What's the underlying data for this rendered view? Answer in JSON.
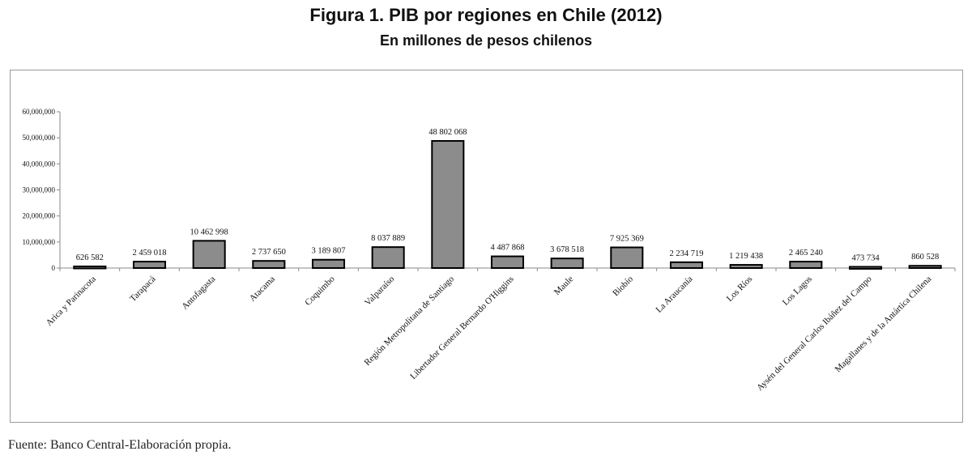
{
  "figure": {
    "title": "Figura 1. PIB por regiones en Chile (2012)",
    "subtitle": "En millones de pesos chilenos",
    "source": "Fuente: Banco Central-Elaboración propia."
  },
  "chart_data": {
    "type": "bar",
    "title": "Figura 1. PIB por regiones en Chile (2012)",
    "subtitle": "En millones de pesos chilenos",
    "xlabel": "",
    "ylabel": "",
    "ylim": [
      0,
      60000000
    ],
    "yticks": [
      0,
      10000000,
      20000000,
      30000000,
      40000000,
      50000000,
      60000000
    ],
    "ytick_labels": [
      "0",
      "10,000,000",
      "20,000,000",
      "30,000,000",
      "40,000,000",
      "50,000,000",
      "60,000,000"
    ],
    "grid": false,
    "legend": "none",
    "bar_color": "#8c8c8c",
    "bar_edge_color": "#000000",
    "categories": [
      "Arica y Parinacota",
      "Tarapacá",
      "Antofagasta",
      "Atacama",
      "Coquimbo",
      "Valparaíso",
      "Región Metropolitana de Santiago",
      "Libertador General Bernardo O'Higgins",
      "Maule",
      "Biobío",
      "La Araucanía",
      "Los Ríos",
      "Los Lagos",
      "Aysén del General Carlos Ibáñez del Campo",
      "Magallanes y de la Antártica Chilena"
    ],
    "values": [
      626582,
      2459018,
      10462998,
      2737650,
      3189807,
      8037889,
      48802068,
      4487868,
      3678518,
      7925369,
      2234719,
      1219438,
      2465240,
      473734,
      860528
    ],
    "data_labels": [
      "626 582",
      "2 459 018",
      "10 462 998",
      "2 737 650",
      "3 189 807",
      "8 037 889",
      "48 802 068",
      "4 487 868",
      "3 678 518",
      "7 925 369",
      "2 234 719",
      "1 219 438",
      "2 465 240",
      "473 734",
      "860 528"
    ]
  }
}
